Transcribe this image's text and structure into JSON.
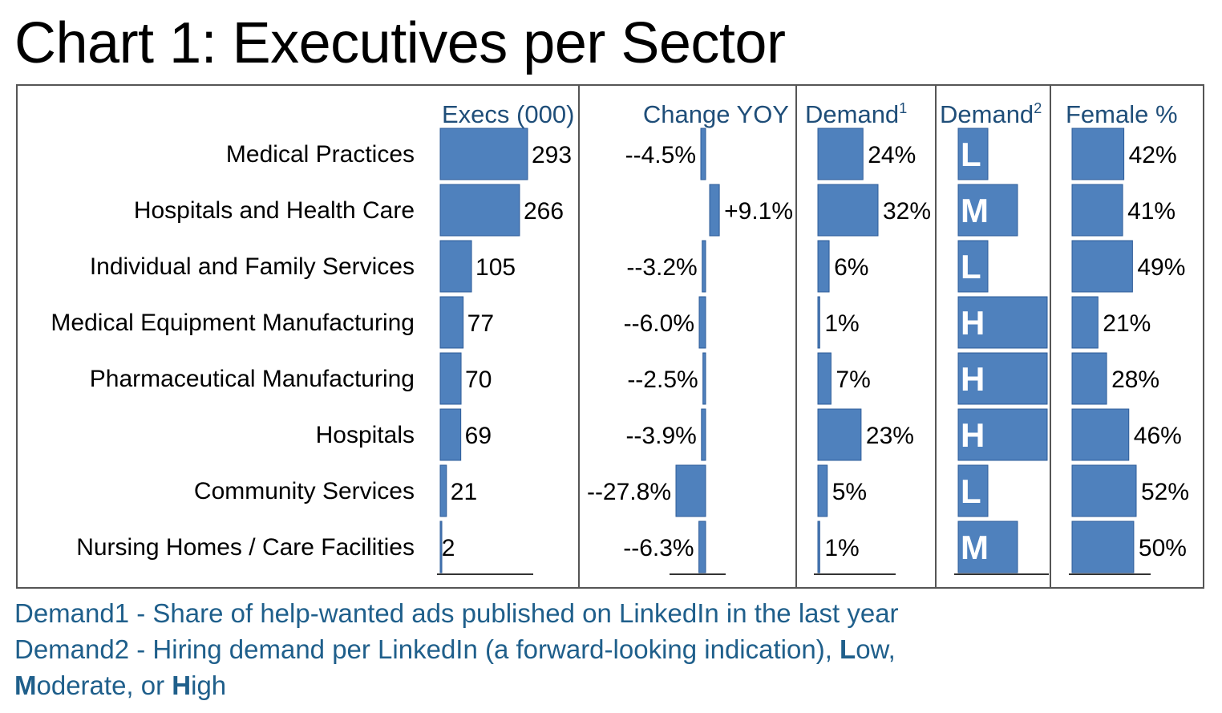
{
  "title": "Chart 1: Executives per Sector",
  "colors": {
    "bar": "#4f81bd",
    "bar_edge": "#2e5c99",
    "header": "#1f4e79",
    "footnote": "#1f5f8b",
    "frame": "#555555"
  },
  "chart_data": {
    "type": "bar",
    "orientation": "horizontal",
    "title": "Chart 1: Executives per Sector",
    "categories": [
      "Medical Practices",
      "Hospitals and Health Care",
      "Individual and Family Services",
      "Medical Equipment Manufacturing",
      "Pharmaceutical Manufacturing",
      "Hospitals",
      "Community Services",
      "Nursing Homes / Care Facilities"
    ],
    "series": [
      {
        "name": "Execs (000)",
        "header": "Execs (000)",
        "max": 293,
        "values": [
          293,
          266,
          105,
          77,
          70,
          69,
          21,
          2
        ],
        "labels": [
          "293",
          "266",
          "105",
          "77",
          "70",
          "69",
          "21",
          "2"
        ]
      },
      {
        "name": "Change YOY",
        "header": "Change YOY",
        "diverging": true,
        "range": [
          -27.8,
          9.1
        ],
        "values": [
          -4.5,
          9.1,
          -3.2,
          -6.0,
          -2.5,
          -3.9,
          -27.8,
          -6.3
        ],
        "labels": [
          "--4.5%",
          "+9.1%",
          "--3.2%",
          "--6.0%",
          "--2.5%",
          "--3.9%",
          "--27.8%",
          "--6.3%"
        ]
      },
      {
        "name": "Demand1",
        "header": "Demand",
        "header_sup": "1",
        "max": 32,
        "values": [
          24,
          32,
          6,
          1,
          7,
          23,
          5,
          1
        ],
        "labels": [
          "24%",
          "32%",
          "6%",
          "1%",
          "7%",
          "23%",
          "5%",
          "1%"
        ]
      },
      {
        "name": "Demand2",
        "header": "Demand",
        "header_sup": "2",
        "scale": {
          "L": 1,
          "M": 2,
          "H": 3
        },
        "values": [
          "L",
          "M",
          "L",
          "H",
          "H",
          "H",
          "L",
          "M"
        ]
      },
      {
        "name": "Female %",
        "header": "Female %",
        "max": 52,
        "values": [
          42,
          41,
          49,
          21,
          28,
          46,
          52,
          50
        ],
        "labels": [
          "42%",
          "41%",
          "49%",
          "21%",
          "28%",
          "46%",
          "52%",
          "50%"
        ]
      }
    ]
  },
  "footnotes": {
    "line1": "Demand1 - Share of help-wanted ads published on LinkedIn in the last year",
    "line2_text": "Demand2 - Hiring demand per LinkedIn (a forward-looking indication), ",
    "line2_L": "L",
    "line2_low_rest": "ow,",
    "line3_M": "M",
    "line3_mid": "oderate, or ",
    "line3_H": "H",
    "line3_end": "igh"
  }
}
